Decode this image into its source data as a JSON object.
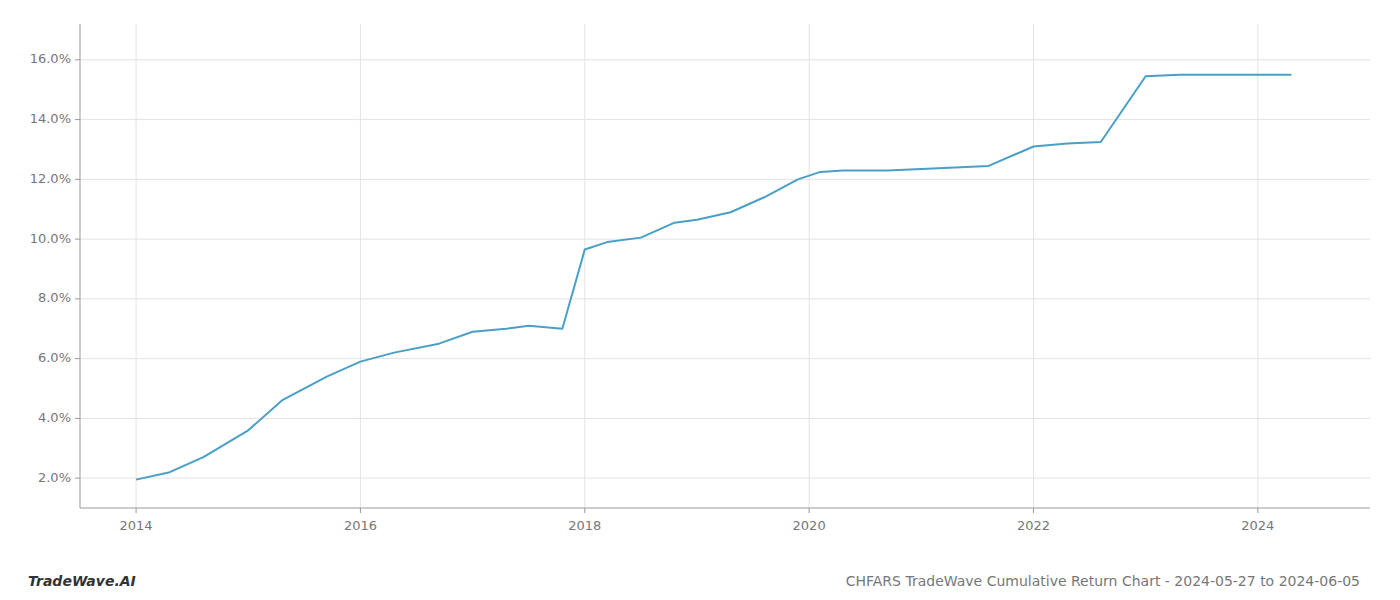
{
  "chart_data": {
    "type": "line",
    "title": "CHFARS TradeWave Cumulative Return Chart - 2024-05-27 to 2024-06-05",
    "annotations": [
      "TradeWave.AI"
    ],
    "color": "#4a9fc8",
    "grid": true,
    "x": [
      2014.0,
      2014.3,
      2014.6,
      2015.0,
      2015.3,
      2015.7,
      2016.0,
      2016.3,
      2016.7,
      2017.0,
      2017.3,
      2017.5,
      2017.8,
      2018.0,
      2018.2,
      2018.5,
      2018.8,
      2019.0,
      2019.3,
      2019.6,
      2019.9,
      2020.1,
      2020.3,
      2020.5,
      2020.7,
      2021.0,
      2021.3,
      2021.6,
      2022.0,
      2022.3,
      2022.6,
      2023.0,
      2023.3,
      2023.5,
      2023.8,
      2024.0,
      2024.3
    ],
    "values": [
      1.95,
      2.2,
      2.7,
      3.6,
      4.6,
      5.4,
      5.9,
      6.2,
      6.5,
      6.9,
      7.0,
      7.1,
      7.0,
      9.65,
      9.9,
      10.05,
      10.55,
      10.65,
      10.9,
      11.4,
      12.0,
      12.25,
      12.3,
      12.3,
      12.3,
      12.35,
      12.4,
      12.45,
      13.1,
      13.2,
      13.25,
      15.45,
      15.5,
      15.5,
      15.5,
      15.5,
      15.5
    ],
    "xlim": [
      2013.5,
      2025.0
    ],
    "ylim": [
      1.0,
      17.2
    ],
    "xticks": [
      2014,
      2016,
      2018,
      2020,
      2022,
      2024
    ],
    "yticks": [
      {
        "value": 2.0,
        "label": "2.0%"
      },
      {
        "value": 4.0,
        "label": "4.0%"
      },
      {
        "value": 6.0,
        "label": "6.0%"
      },
      {
        "value": 8.0,
        "label": "8.0%"
      },
      {
        "value": 10.0,
        "label": "10.0%"
      },
      {
        "value": 12.0,
        "label": "12.0%"
      },
      {
        "value": 14.0,
        "label": "14.0%"
      },
      {
        "value": 16.0,
        "label": "16.0%"
      }
    ]
  }
}
